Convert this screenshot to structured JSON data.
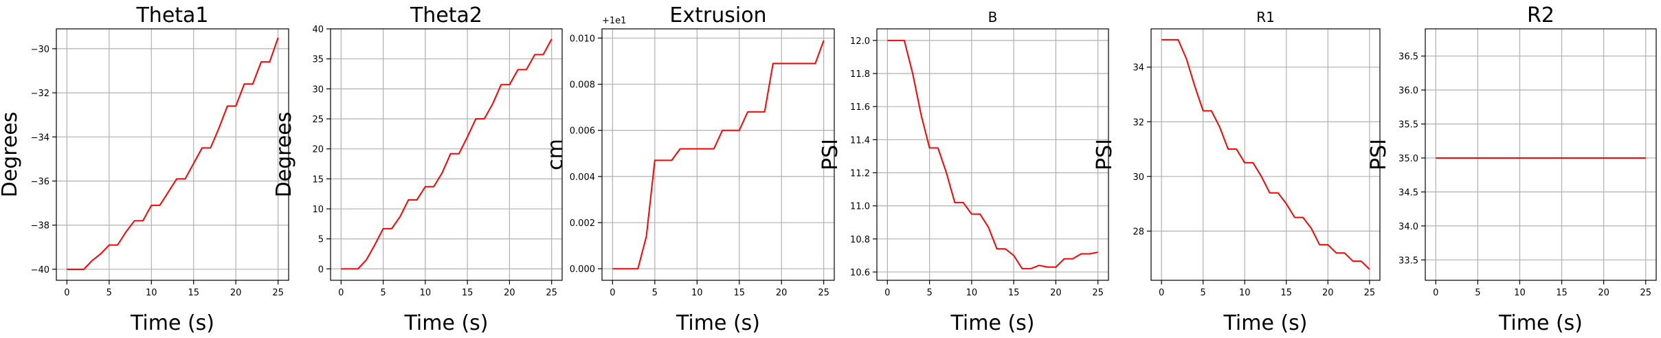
{
  "figure": {
    "background": "#ffffff",
    "line_color": "#ff0000",
    "grid_color": "#b0b0b0"
  },
  "chart_data": [
    {
      "type": "line",
      "title": "Theta1",
      "xlabel": "Time (s)",
      "ylabel": "Degrees",
      "offset_text": "",
      "xlim": [
        -1.25,
        26.25
      ],
      "ylim": [
        -40.5,
        -29.1
      ],
      "xticks": [
        0,
        5,
        10,
        15,
        20,
        25
      ],
      "xtick_labels": [
        "0",
        "5",
        "10",
        "15",
        "20",
        "25"
      ],
      "yticks": [
        -40,
        -38,
        -36,
        -34,
        -32,
        -30
      ],
      "ytick_labels": [
        "−40",
        "−38",
        "−36",
        "−34",
        "−32",
        "−30"
      ],
      "grid": true,
      "series": [
        {
          "color": "#ff0000",
          "x": [
            0,
            1,
            2,
            3,
            4,
            5,
            6,
            7,
            8,
            9,
            10,
            11,
            12,
            13,
            14,
            15,
            16,
            17,
            18,
            19,
            20,
            21,
            22,
            23,
            24,
            25
          ],
          "y": [
            -40,
            -40,
            -40,
            -39.6,
            -39.3,
            -38.9,
            -38.9,
            -38.3,
            -37.8,
            -37.8,
            -37.1,
            -37.1,
            -36.5,
            -35.9,
            -35.9,
            -35.2,
            -34.5,
            -34.5,
            -33.6,
            -32.6,
            -32.6,
            -31.6,
            -31.6,
            -30.6,
            -30.6,
            -29.5
          ]
        }
      ]
    },
    {
      "type": "line",
      "title": "Theta2",
      "xlabel": "Time (s)",
      "ylabel": "Degrees",
      "offset_text": "",
      "xlim": [
        -1.25,
        26.25
      ],
      "ylim": [
        -1.9,
        40
      ],
      "xticks": [
        0,
        5,
        10,
        15,
        20,
        25
      ],
      "xtick_labels": [
        "0",
        "5",
        "10",
        "15",
        "20",
        "25"
      ],
      "yticks": [
        0,
        5,
        10,
        15,
        20,
        25,
        30,
        35,
        40
      ],
      "ytick_labels": [
        "0",
        "5",
        "10",
        "15",
        "20",
        "25",
        "30",
        "35",
        "40"
      ],
      "grid": true,
      "series": [
        {
          "color": "#ff0000",
          "x": [
            0,
            1,
            2,
            3,
            4,
            5,
            6,
            7,
            8,
            9,
            10,
            11,
            12,
            13,
            14,
            15,
            16,
            17,
            18,
            19,
            20,
            21,
            22,
            23,
            24,
            25
          ],
          "y": [
            0,
            0,
            0,
            1.5,
            4,
            6.7,
            6.7,
            8.7,
            11.5,
            11.5,
            13.7,
            13.7,
            16,
            19.2,
            19.2,
            22,
            25,
            25,
            27.5,
            30.7,
            30.7,
            33.2,
            33.2,
            35.7,
            35.7,
            38.3
          ]
        }
      ]
    },
    {
      "type": "line",
      "title": "Extrusion",
      "xlabel": "Time (s)",
      "ylabel": "cm",
      "offset_text": "+1e1",
      "xlim": [
        -1.25,
        26.25
      ],
      "ylim": [
        -0.0005,
        0.0104
      ],
      "xticks": [
        0,
        5,
        10,
        15,
        20,
        25
      ],
      "xtick_labels": [
        "0",
        "5",
        "10",
        "15",
        "20",
        "25"
      ],
      "yticks": [
        0,
        0.002,
        0.004,
        0.006,
        0.008,
        0.01
      ],
      "ytick_labels": [
        "0.000",
        "0.002",
        "0.004",
        "0.006",
        "0.008",
        "0.010"
      ],
      "grid": true,
      "series": [
        {
          "color": "#ff0000",
          "x": [
            0,
            1,
            2,
            3,
            4,
            5,
            6,
            7,
            8,
            9,
            10,
            11,
            12,
            13,
            14,
            15,
            16,
            17,
            18,
            19,
            20,
            21,
            22,
            23,
            24,
            25
          ],
          "y": [
            0,
            0,
            0,
            0,
            0.0014,
            0.0047,
            0.0047,
            0.0047,
            0.0052,
            0.0052,
            0.0052,
            0.0052,
            0.0052,
            0.006,
            0.006,
            0.006,
            0.0068,
            0.0068,
            0.0068,
            0.0089,
            0.0089,
            0.0089,
            0.0089,
            0.0089,
            0.0089,
            0.0099
          ]
        }
      ]
    },
    {
      "type": "line",
      "title": "B",
      "xlabel": "Time (s)",
      "ylabel": "PSI",
      "offset_text": "",
      "xlim": [
        -1.25,
        26.25
      ],
      "ylim": [
        10.55,
        12.07
      ],
      "xticks": [
        0,
        5,
        10,
        15,
        20,
        25
      ],
      "xtick_labels": [
        "0",
        "5",
        "10",
        "15",
        "20",
        "25"
      ],
      "yticks": [
        10.6,
        10.8,
        11.0,
        11.2,
        11.4,
        11.6,
        11.8,
        12.0
      ],
      "ytick_labels": [
        "10.6",
        "10.8",
        "11.0",
        "11.2",
        "11.4",
        "11.6",
        "11.8",
        "12.0"
      ],
      "grid": true,
      "series": [
        {
          "color": "#ff0000",
          "x": [
            0,
            1,
            2,
            3,
            4,
            5,
            6,
            7,
            8,
            9,
            10,
            11,
            12,
            13,
            14,
            15,
            16,
            17,
            18,
            19,
            20,
            21,
            22,
            23,
            24,
            25
          ],
          "y": [
            12.0,
            12.0,
            12.0,
            11.8,
            11.55,
            11.35,
            11.35,
            11.2,
            11.02,
            11.02,
            10.95,
            10.95,
            10.87,
            10.74,
            10.74,
            10.7,
            10.62,
            10.62,
            10.64,
            10.63,
            10.63,
            10.68,
            10.68,
            10.71,
            10.71,
            10.72
          ]
        }
      ]
    },
    {
      "type": "line",
      "title": "R1",
      "xlabel": "Time (s)",
      "ylabel": "PSI",
      "offset_text": "",
      "xlim": [
        -1.25,
        26.25
      ],
      "ylim": [
        26.2,
        35.4
      ],
      "xticks": [
        0,
        5,
        10,
        15,
        20,
        25
      ],
      "xtick_labels": [
        "0",
        "5",
        "10",
        "15",
        "20",
        "25"
      ],
      "yticks": [
        28,
        30,
        32,
        34
      ],
      "ytick_labels": [
        "28",
        "30",
        "32",
        "34"
      ],
      "grid": true,
      "series": [
        {
          "color": "#ff0000",
          "x": [
            0,
            1,
            2,
            3,
            4,
            5,
            6,
            7,
            8,
            9,
            10,
            11,
            12,
            13,
            14,
            15,
            16,
            17,
            18,
            19,
            20,
            21,
            22,
            23,
            24,
            25
          ],
          "y": [
            35,
            35,
            35,
            34.3,
            33.3,
            32.4,
            32.4,
            31.8,
            31,
            31,
            30.5,
            30.5,
            30,
            29.4,
            29.4,
            29,
            28.5,
            28.5,
            28.1,
            27.5,
            27.5,
            27.2,
            27.2,
            26.9,
            26.9,
            26.6
          ]
        }
      ]
    },
    {
      "type": "line",
      "title": "R2",
      "xlabel": "Time (s)",
      "ylabel": "PSI",
      "offset_text": "",
      "xlim": [
        -1.25,
        26.25
      ],
      "ylim": [
        33.2,
        36.9
      ],
      "xticks": [
        0,
        5,
        10,
        15,
        20,
        25
      ],
      "xtick_labels": [
        "0",
        "5",
        "10",
        "15",
        "20",
        "25"
      ],
      "yticks": [
        33.5,
        34.0,
        34.5,
        35.0,
        35.5,
        36.0,
        36.5
      ],
      "ytick_labels": [
        "33.5",
        "34.0",
        "34.5",
        "35.0",
        "35.5",
        "36.0",
        "36.5"
      ],
      "grid": true,
      "series": [
        {
          "color": "#ff0000",
          "x": [
            0,
            25
          ],
          "y": [
            35,
            35
          ]
        }
      ]
    }
  ]
}
